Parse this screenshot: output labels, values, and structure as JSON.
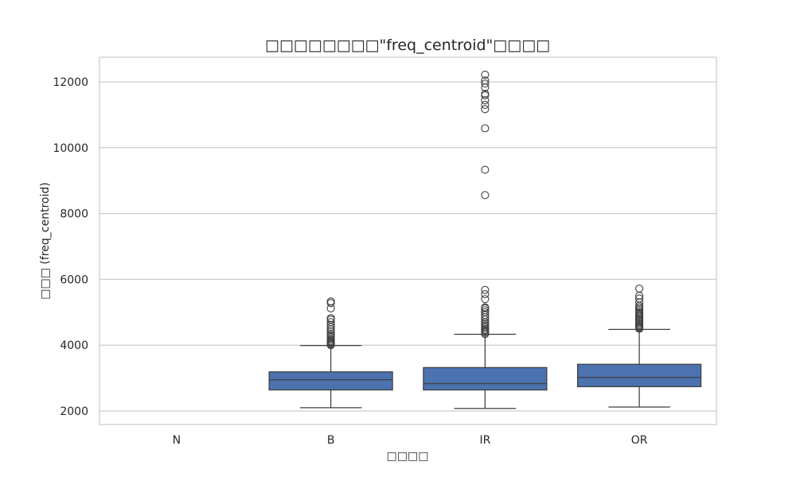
{
  "chart_data": {
    "type": "box",
    "title": "□□□□□□□□\"freq_centroid\"□□□□",
    "xlabel": "□□□□",
    "ylabel": "□□□ (freq_centroid)",
    "categories": [
      "N",
      "B",
      "IR",
      "OR"
    ],
    "y_ticks": [
      2000,
      4000,
      6000,
      8000,
      10000,
      12000
    ],
    "ylim": [
      1600,
      12800
    ],
    "grid": "horizontal",
    "box_color": "#4c72b0",
    "boxes": [
      {
        "category": "N",
        "empty": true
      },
      {
        "category": "B",
        "whisker_low": 2100,
        "q1": 2640,
        "median": 2950,
        "q3": 3190,
        "whisker_high": 3990,
        "outliers": [
          4000,
          4030,
          4060,
          4090,
          4120,
          4160,
          4200,
          4250,
          4300,
          4350,
          4420,
          4480,
          4550,
          4620,
          4700,
          4780,
          4820,
          5120,
          5280,
          5330
        ]
      },
      {
        "category": "IR",
        "whisker_low": 2080,
        "q1": 2640,
        "median": 2830,
        "q3": 3320,
        "whisker_high": 4330,
        "outliers": [
          4340,
          4380,
          4420,
          4460,
          4500,
          4550,
          4600,
          4650,
          4700,
          4780,
          4850,
          4920,
          5000,
          5060,
          5120,
          5150,
          5400,
          5550,
          5680,
          8560,
          9330,
          10590,
          11170,
          11300,
          11440,
          11590,
          11640,
          11830,
          11950,
          12040,
          12220
        ]
      },
      {
        "category": "OR",
        "whisker_low": 2120,
        "q1": 2740,
        "median": 3020,
        "q3": 3420,
        "whisker_high": 4480,
        "outliers": [
          4500,
          4530,
          4560,
          4600,
          4640,
          4680,
          4720,
          4760,
          4800,
          4840,
          4880,
          4920,
          4960,
          5000,
          5050,
          5100,
          5150,
          5200,
          5300,
          5420,
          5500,
          5720
        ]
      }
    ]
  }
}
